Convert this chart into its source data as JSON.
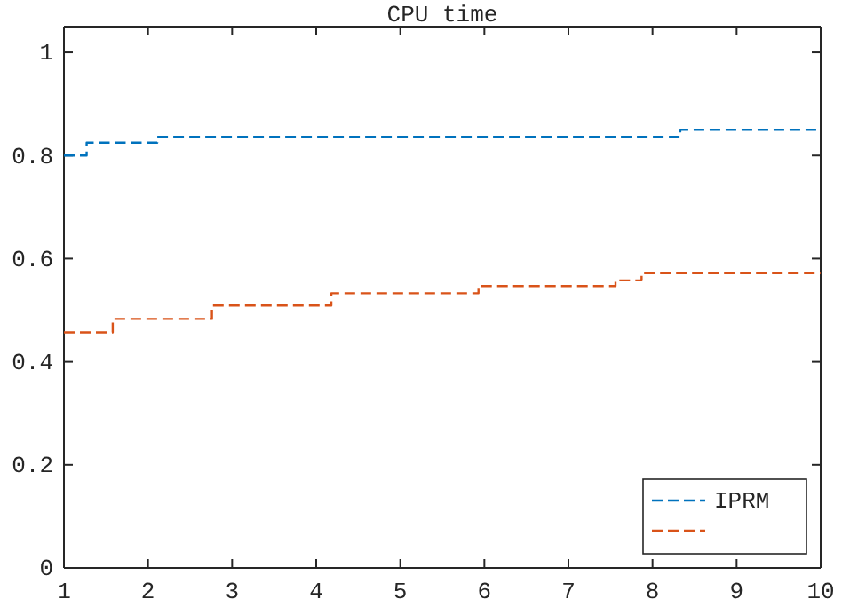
{
  "chart_data": {
    "type": "step",
    "title": "CPU time",
    "xlim": [
      1,
      10
    ],
    "xticks": [
      1,
      2,
      3,
      4,
      5,
      6,
      7,
      8,
      9,
      10
    ],
    "ylim": [
      0,
      1.05
    ],
    "yticks": [
      0,
      0.2,
      0.4,
      0.6,
      0.8,
      1
    ],
    "grid": false,
    "legend": "bottom right",
    "series": [
      {
        "name": "IPRM",
        "color": "#0072bd",
        "line_style": "dashed",
        "x": [
          1,
          1.27,
          2.11,
          8.33,
          10
        ],
        "values": [
          0.8,
          0.825,
          0.836,
          0.85,
          0.85
        ]
      },
      {
        "color": "#d95319",
        "line_style": "dashed",
        "x": [
          1,
          1.58,
          2.76,
          4.18,
          5.93,
          7.56,
          7.87,
          10
        ],
        "values": [
          0.457,
          0.483,
          0.509,
          0.533,
          0.547,
          0.558,
          0.572,
          0.572
        ]
      }
    ]
  }
}
